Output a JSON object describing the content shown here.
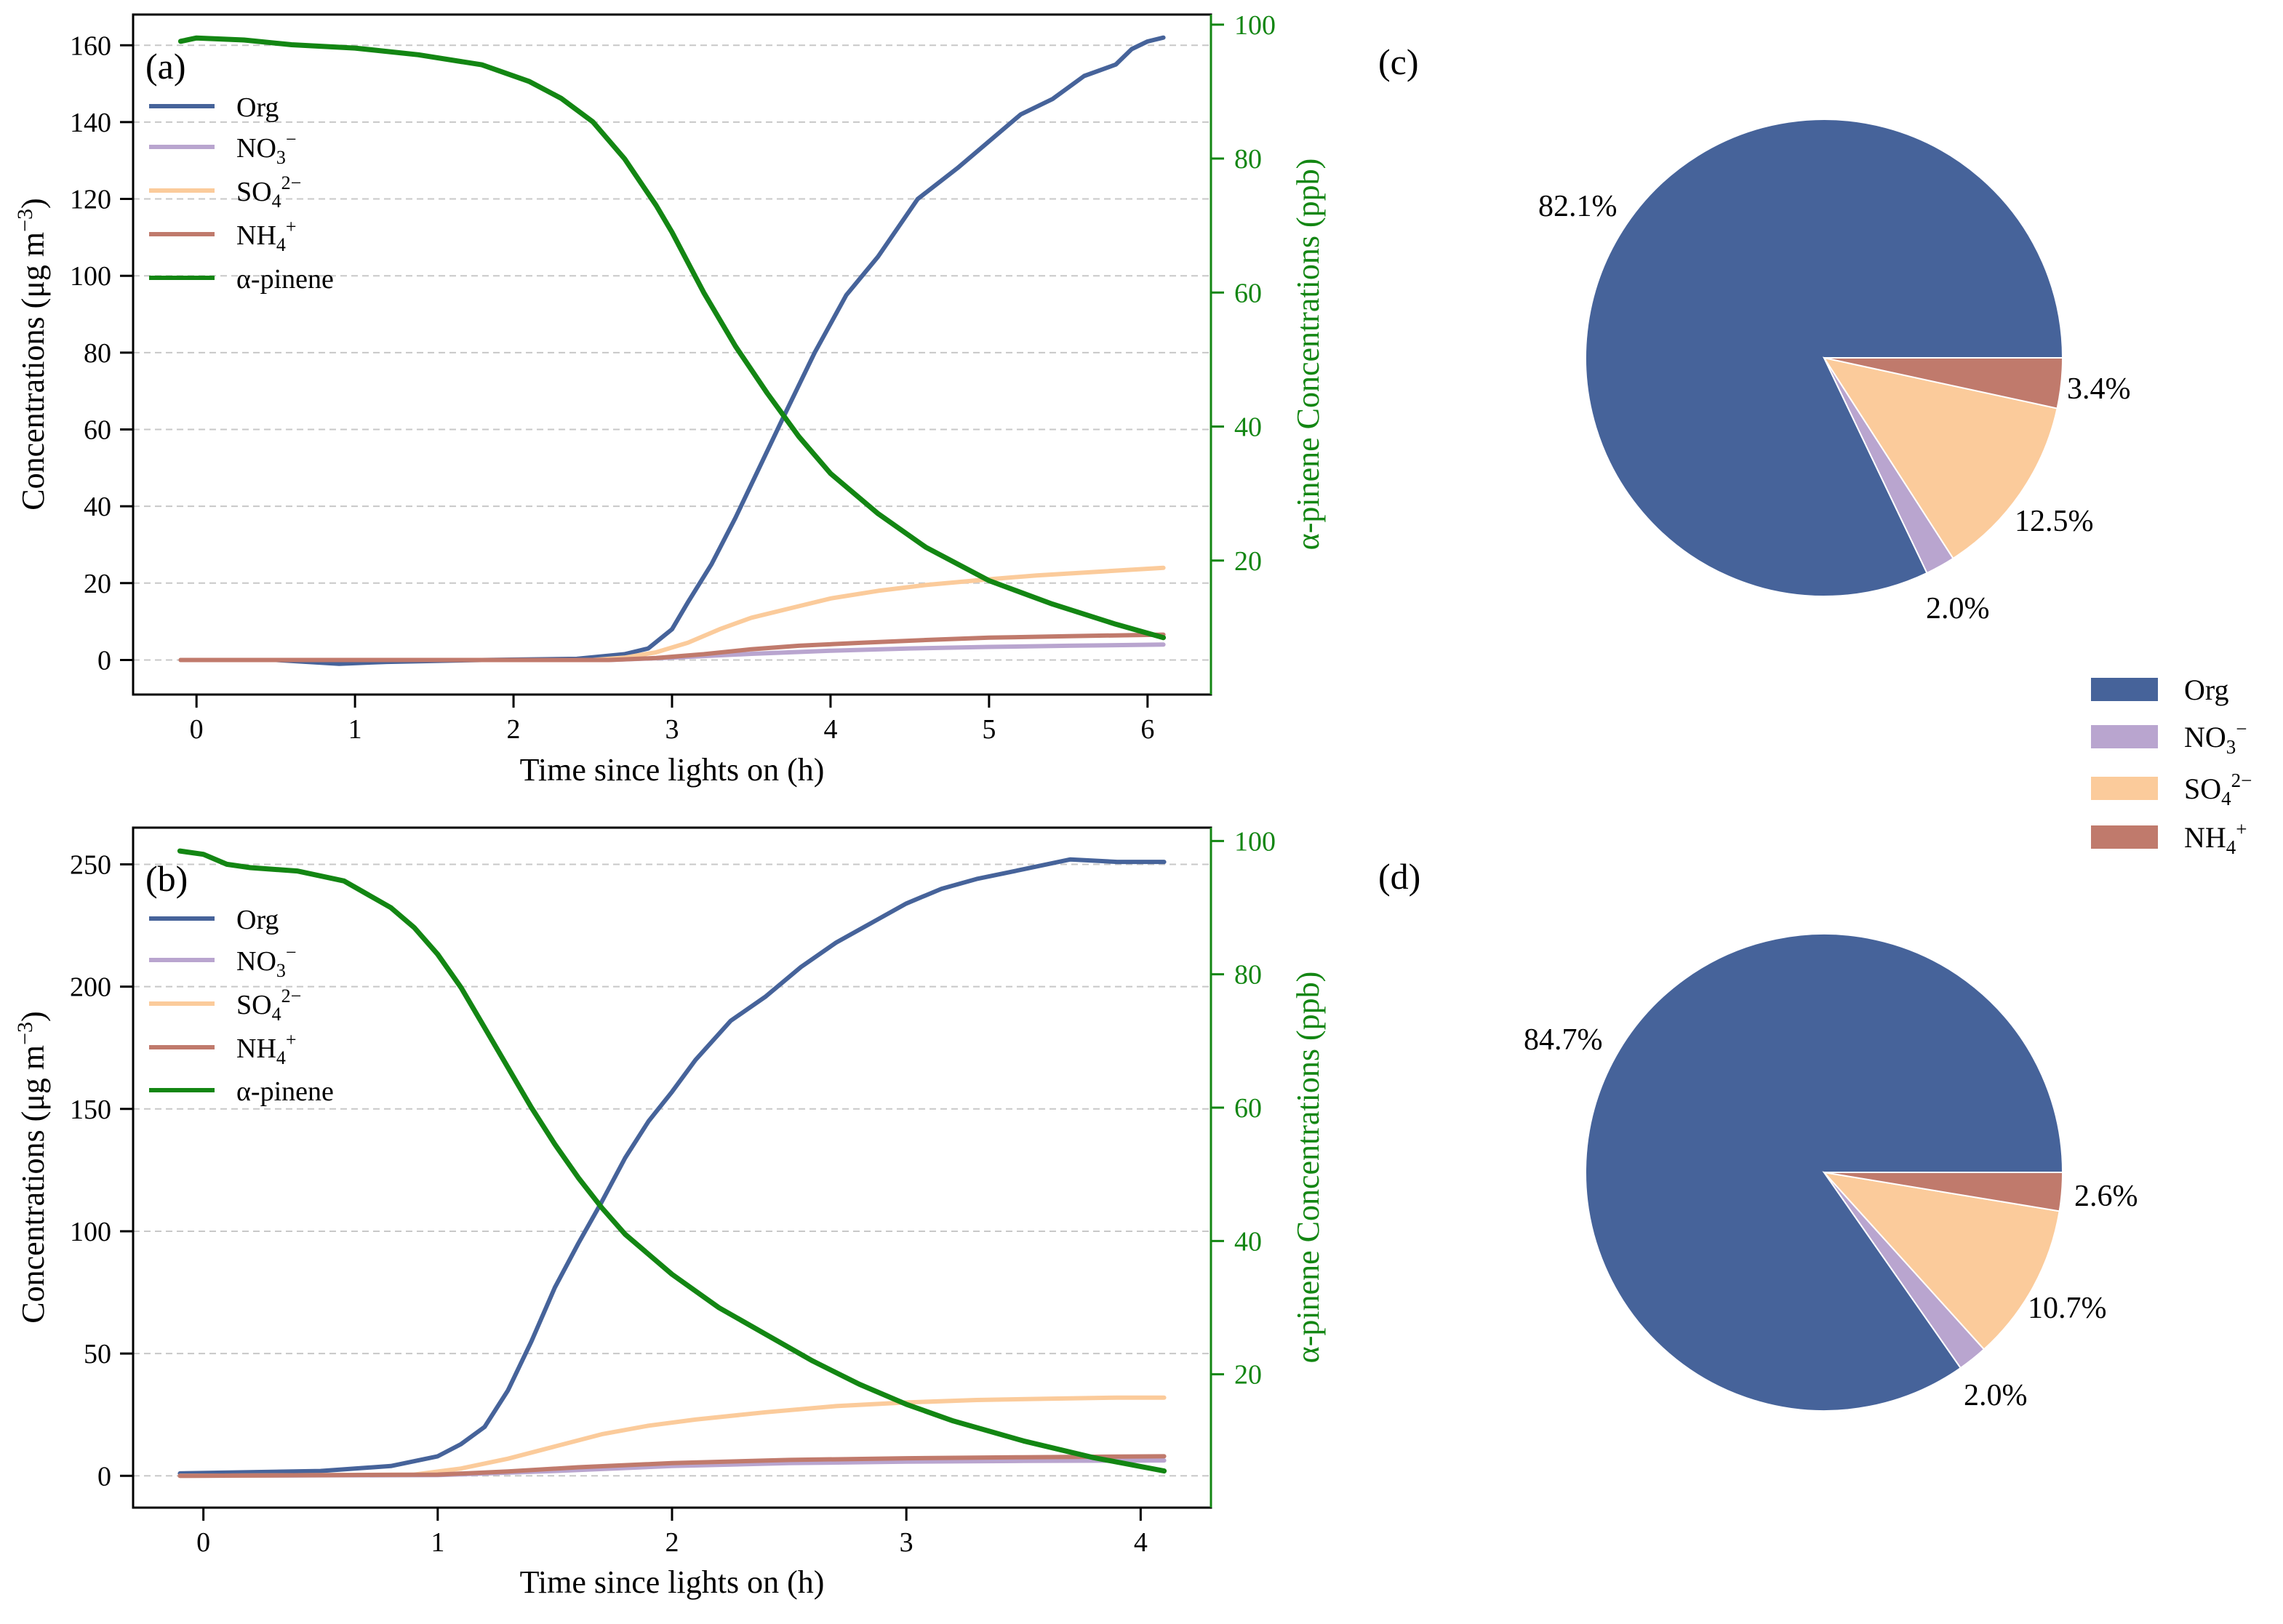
{
  "colors": {
    "org": "#46639a",
    "no3": "#b9a5cf",
    "so4": "#fbcb9b",
    "nh4": "#c07a6c",
    "pinene": "#138613",
    "axis_right": "#138613",
    "grid": "#c8c8c8"
  },
  "legend_labels": {
    "org": "Org",
    "no3_base": "NO",
    "no3_sub": "3",
    "no3_sup": "−",
    "so4_base": "SO",
    "so4_sub": "4",
    "so4_sup": "2−",
    "nh4_base": "NH",
    "nh4_sub": "4",
    "nh4_sup": "+",
    "pinene": "α-pinene"
  },
  "chart_data": [
    {
      "type": "line",
      "panel_label": "(a)",
      "xlabel": "Time since lights on (h)",
      "ylabel_left": "Concentrations (μg m−3)",
      "ylabel_left_base": "Concentrations (μg m",
      "ylabel_left_sup": "−3",
      "ylabel_left_close": ")",
      "ylabel_right": "α-pinene Concentrations (ppb)",
      "xlim": [
        -0.4,
        6.4
      ],
      "ylim_left": [
        -9,
        168
      ],
      "ylim_right": [
        0,
        101.5
      ],
      "xticks": [
        0,
        1,
        2,
        3,
        4,
        5,
        6
      ],
      "yticks_left": [
        0,
        20,
        40,
        60,
        80,
        100,
        120,
        140,
        160
      ],
      "yticks_right": [
        20,
        40,
        60,
        80,
        100
      ],
      "grid": true,
      "series": [
        {
          "name": "Org",
          "key": "org",
          "axis": "left",
          "x": [
            -0.1,
            0.5,
            0.9,
            1.2,
            1.8,
            2.4,
            2.7,
            2.85,
            3.0,
            3.1,
            3.25,
            3.4,
            3.55,
            3.7,
            3.9,
            4.1,
            4.3,
            4.55,
            4.8,
            5.0,
            5.2,
            5.4,
            5.6,
            5.8,
            5.9,
            6.0,
            6.1
          ],
          "y": [
            0,
            0,
            -1,
            -0.5,
            0,
            0.3,
            1.5,
            3,
            8,
            15,
            25,
            37,
            50,
            63,
            80,
            95,
            105,
            120,
            128,
            135,
            142,
            146,
            152,
            155,
            159,
            161,
            162
          ]
        },
        {
          "name": "NO3-",
          "key": "no3",
          "axis": "left",
          "x": [
            -0.1,
            2.6,
            3.0,
            3.5,
            4.0,
            4.5,
            5.0,
            5.5,
            6.1
          ],
          "y": [
            0,
            0,
            0.6,
            1.6,
            2.4,
            3.0,
            3.4,
            3.7,
            4.0
          ]
        },
        {
          "name": "SO42-",
          "key": "so4",
          "axis": "left",
          "x": [
            -0.1,
            2.5,
            2.7,
            2.9,
            3.1,
            3.3,
            3.5,
            3.8,
            4.0,
            4.3,
            4.6,
            5.0,
            5.3,
            5.7,
            6.1
          ],
          "y": [
            0,
            0,
            0.6,
            2,
            4.5,
            8,
            11,
            14,
            16,
            18,
            19.5,
            21,
            22,
            23,
            24
          ]
        },
        {
          "name": "NH4+",
          "key": "nh4",
          "axis": "left",
          "x": [
            -0.1,
            2.6,
            2.9,
            3.2,
            3.5,
            3.8,
            4.2,
            4.6,
            5.0,
            5.5,
            6.1
          ],
          "y": [
            0,
            0,
            0.5,
            1.5,
            2.8,
            3.7,
            4.5,
            5.2,
            5.8,
            6.2,
            6.6
          ]
        },
        {
          "name": "α-pinene",
          "key": "pinene",
          "axis": "right",
          "x": [
            -0.1,
            0,
            0.3,
            0.6,
            1.0,
            1.4,
            1.8,
            2.1,
            2.3,
            2.5,
            2.7,
            2.9,
            3.0,
            3.2,
            3.4,
            3.6,
            3.8,
            4.0,
            4.3,
            4.6,
            5.0,
            5.4,
            5.8,
            6.1
          ],
          "y": [
            97.5,
            98,
            97.7,
            97,
            96.5,
            95.5,
            94,
            91.5,
            89,
            85.5,
            80,
            73,
            69,
            60,
            52,
            45,
            38.5,
            33,
            27,
            22,
            17,
            13.5,
            10.5,
            8.5
          ]
        }
      ]
    },
    {
      "type": "line",
      "panel_label": "(b)",
      "xlabel": "Time since lights on (h)",
      "ylabel_left": "Concentrations (μg m−3)",
      "ylabel_left_base": "Concentrations (μg m",
      "ylabel_left_sup": "−3",
      "ylabel_left_close": ")",
      "ylabel_right": "α-pinene Concentrations (ppb)",
      "xlim": [
        -0.3,
        4.3
      ],
      "ylim_left": [
        -13,
        265
      ],
      "ylim_right": [
        0,
        102
      ],
      "xticks": [
        0,
        1,
        2,
        3,
        4
      ],
      "yticks_left": [
        0,
        50,
        100,
        150,
        200,
        250
      ],
      "yticks_right": [
        20,
        40,
        60,
        80,
        100
      ],
      "grid": true,
      "series": [
        {
          "name": "Org",
          "key": "org",
          "axis": "left",
          "x": [
            -0.1,
            0.5,
            0.8,
            1.0,
            1.1,
            1.2,
            1.3,
            1.4,
            1.5,
            1.6,
            1.7,
            1.8,
            1.9,
            2.0,
            2.1,
            2.25,
            2.4,
            2.55,
            2.7,
            2.85,
            3.0,
            3.15,
            3.3,
            3.5,
            3.7,
            3.9,
            4.1
          ],
          "y": [
            1,
            2,
            4,
            8,
            13,
            20,
            35,
            55,
            77,
            95,
            112,
            130,
            145,
            157,
            170,
            186,
            196,
            208,
            218,
            226,
            234,
            240,
            244,
            248,
            252,
            251,
            251
          ]
        },
        {
          "name": "NO3-",
          "key": "no3",
          "axis": "left",
          "x": [
            -0.1,
            1.0,
            1.5,
            2.0,
            2.5,
            3.0,
            3.5,
            4.1
          ],
          "y": [
            0,
            0.3,
            2,
            4,
            5.2,
            5.8,
            6.1,
            6.3
          ]
        },
        {
          "name": "SO42-",
          "key": "so4",
          "axis": "left",
          "x": [
            -0.1,
            0.9,
            1.1,
            1.3,
            1.5,
            1.7,
            1.9,
            2.1,
            2.4,
            2.7,
            3.0,
            3.3,
            3.6,
            3.9,
            4.1
          ],
          "y": [
            0,
            0.5,
            3,
            7,
            12,
            17,
            20.5,
            23,
            26,
            28.5,
            30,
            31,
            31.5,
            32,
            32
          ]
        },
        {
          "name": "NH4+",
          "key": "nh4",
          "axis": "left",
          "x": [
            -0.1,
            1.0,
            1.3,
            1.6,
            2.0,
            2.5,
            3.0,
            3.5,
            4.1
          ],
          "y": [
            0,
            0.5,
            1.8,
            3.5,
            5.2,
            6.5,
            7.2,
            7.6,
            8
          ]
        },
        {
          "name": "α-pinene",
          "key": "pinene",
          "axis": "right",
          "x": [
            -0.1,
            0,
            0.1,
            0.2,
            0.4,
            0.6,
            0.8,
            0.9,
            1.0,
            1.1,
            1.2,
            1.3,
            1.4,
            1.5,
            1.6,
            1.7,
            1.8,
            2.0,
            2.2,
            2.4,
            2.6,
            2.8,
            3.0,
            3.2,
            3.5,
            3.8,
            4.1
          ],
          "y": [
            98.5,
            98,
            96.5,
            96,
            95.5,
            94,
            90,
            87,
            83,
            78,
            72,
            66,
            60,
            54.5,
            49.5,
            45,
            41,
            35,
            30,
            26,
            22,
            18.5,
            15.5,
            13,
            10,
            7.5,
            5.5
          ]
        }
      ]
    },
    {
      "type": "pie",
      "panel_label": "(c)",
      "labels": [
        "Org",
        "NO3-",
        "SO42-",
        "NH4+"
      ],
      "values": [
        82.1,
        2.0,
        12.5,
        3.4
      ],
      "value_labels": [
        "82.1%",
        "2.0%",
        "12.5%",
        "3.4%"
      ]
    },
    {
      "type": "pie",
      "panel_label": "(d)",
      "labels": [
        "Org",
        "NO3-",
        "SO42-",
        "NH4+"
      ],
      "values": [
        84.7,
        2.0,
        10.7,
        2.6
      ],
      "value_labels": [
        "84.7%",
        "2.0%",
        "10.7%",
        "2.6%"
      ]
    }
  ]
}
